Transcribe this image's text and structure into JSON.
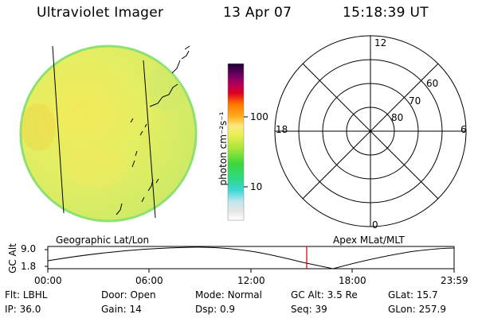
{
  "header": {
    "title": "Ultraviolet Imager",
    "date": "13 Apr 07",
    "time": "15:18:39 UT"
  },
  "colorbar": {
    "label": "photon cm⁻²s⁻¹",
    "tick_high": "100",
    "tick_low": "10"
  },
  "polar_plot": {
    "mlt_labels": {
      "top": "12",
      "left": "18",
      "right": "6",
      "bottom": "0"
    },
    "lat_labels": [
      "60",
      "70",
      "80"
    ]
  },
  "timeline": {
    "left_title": "Geographic Lat/Lon",
    "right_title": "Apex MLat/MLT",
    "y_axis_label": "GC Alt",
    "y_ticks": [
      "9.0",
      "1.8"
    ],
    "x_ticks": [
      "00:00",
      "06:00",
      "12:00",
      "18:00",
      "23:59"
    ]
  },
  "info": {
    "row1": [
      {
        "label": "Flt:",
        "value": "LBHL"
      },
      {
        "label": "Door:",
        "value": "Open"
      },
      {
        "label": "Mode:",
        "value": "Normal"
      },
      {
        "label": "GC Alt:",
        "value": "3.5 Re"
      },
      {
        "label": "GLat:",
        "value": "15.7"
      }
    ],
    "row2": [
      {
        "label": "IP:",
        "value": "36.0"
      },
      {
        "label": "Gain:",
        "value": "14"
      },
      {
        "label": "Dsp:",
        "value": "0.9"
      },
      {
        "label": "Seq:",
        "value": "39"
      },
      {
        "label": "GLon:",
        "value": "257.9"
      }
    ]
  },
  "colors": {
    "disk_fill": "#dcee66",
    "disk_edge": "#8ee070",
    "marker": "#cc0000"
  }
}
